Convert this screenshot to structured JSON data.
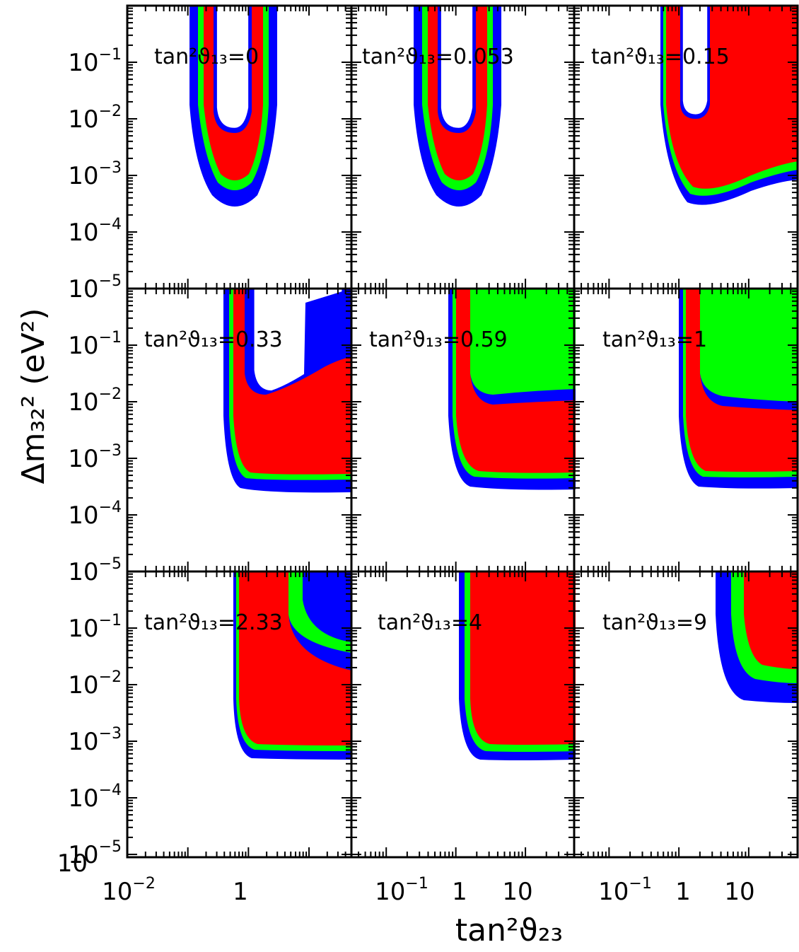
{
  "chart_data": {
    "type": "contour",
    "xlabel": "tan²ϑ₂₃",
    "ylabel": "Δm₃₂² (eV²)",
    "xscale": "log",
    "yscale": "log",
    "xlim": [
      0.01,
      50
    ],
    "ylim": [
      1e-06,
      1
    ],
    "colors": {
      "inner": "#ff0000",
      "middle": "#00ff00",
      "outer": "#0000ff",
      "frame": "#000000"
    },
    "y_ticks": [
      {
        "base": "10",
        "exp": "−1"
      },
      {
        "base": "10",
        "exp": "−2"
      },
      {
        "base": "10",
        "exp": "−3"
      },
      {
        "base": "10",
        "exp": "−4"
      },
      {
        "base": "10",
        "exp": "−5"
      }
    ],
    "y_bottom_tick": "10",
    "x_ticks_left": [
      {
        "base": "10",
        "exp": "−2"
      },
      {
        "base": "1",
        "exp": ""
      }
    ],
    "x_ticks_right": [
      {
        "base": "10",
        "exp": "−1"
      },
      {
        "base": "1",
        "exp": ""
      },
      {
        "base": "10",
        "exp": ""
      }
    ],
    "panels": [
      {
        "label": "tan²ϑ₁₃=0"
      },
      {
        "label": "tan²ϑ₁₃=0.053"
      },
      {
        "label": "tan²ϑ₁₃=0.15"
      },
      {
        "label": "tan²ϑ₁₃=0.33"
      },
      {
        "label": "tan²ϑ₁₃=0.59"
      },
      {
        "label": "tan²ϑ₁₃=1"
      },
      {
        "label": "tan²ϑ₁₃=2.33"
      },
      {
        "label": "tan²ϑ₁₃=4"
      },
      {
        "label": "tan²ϑ₁₃=9"
      }
    ]
  }
}
